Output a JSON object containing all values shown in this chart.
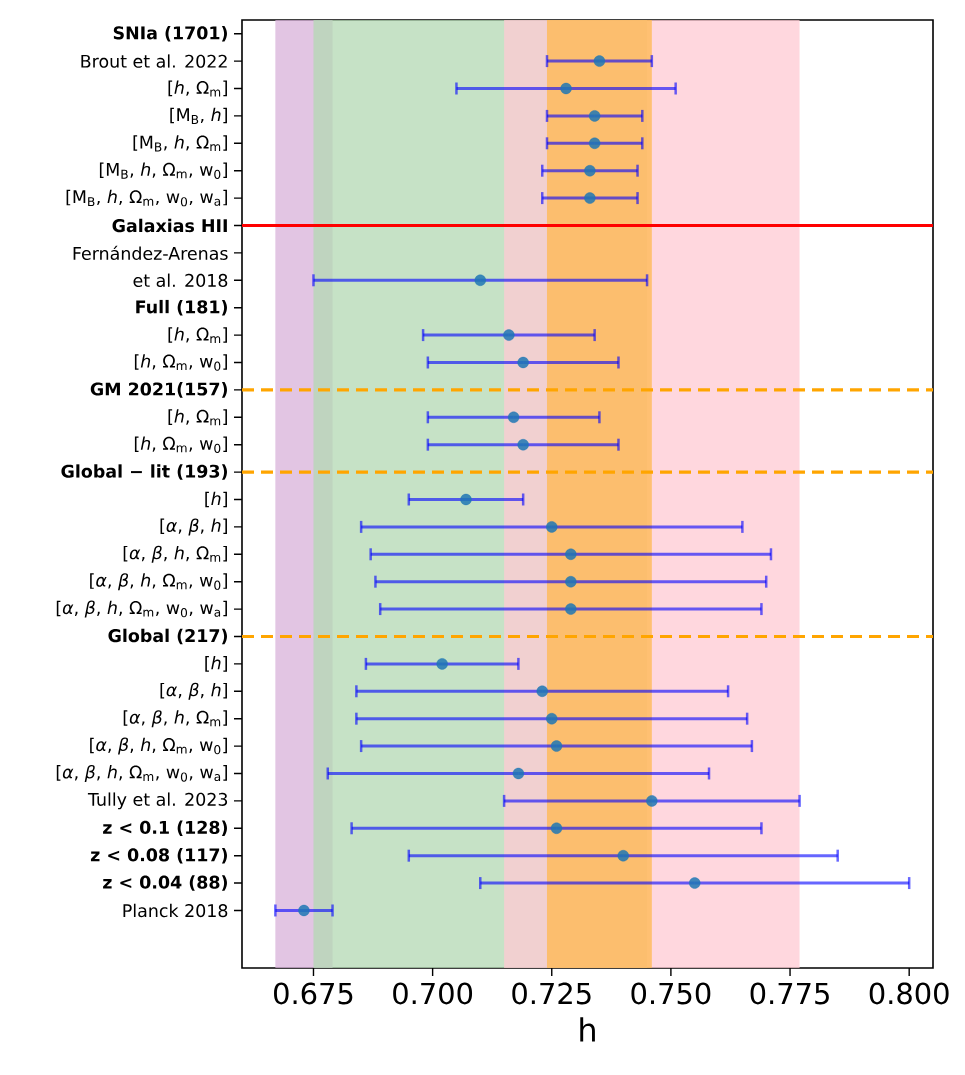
{
  "chart_data": {
    "type": "scatter",
    "orientation": "horizontal",
    "xlabel": "h",
    "categories": [
      "**SNIa (1701)**",
      "Brout et al. 2022",
      "[*h*, Ω$_{m}$]",
      "[M$_{B}$, *h*]",
      "[M$_{B}$, *h*, Ω$_{m}$]",
      "[M$_{B}$, *h*, Ω$_{m}$, w$_{0}$]",
      "[M$_{B}$, *h*, Ω$_{m}$, w$_{0}$, w$_{a}$]",
      "**Galaxias HII**",
      "Fernández-Arenas",
      "et al. 2018",
      "**Full (181)**",
      "[*h*, Ω$_{m}$]",
      "[*h*, Ω$_{m}$, w$_{0}$]",
      "**GM 2021(157)**",
      "[*h*, Ω$_{m}$]",
      "[*h*, Ω$_{m}$, w$_{0}$]",
      "**Global − lit (193)**",
      "[*h*]",
      "[*α*, *β*, *h*]",
      "[*α*, *β*, *h*, Ω$_{m}$]",
      "[*α*, *β*, *h*, Ω$_{m}$, w$_{0}$]",
      "[*α*, *β*, *h*, Ω$_{m}$, w$_{0}$, w$_{a}$]",
      "**Global (217)**",
      "[*h*]",
      "[*α*, *β*, *h*]",
      "[*α*, *β*, *h*, Ω$_{m}$]",
      "[*α*, *β*, *h*, Ω$_{m}$, w$_{0}$]",
      "[*α*, *β*, *h*, Ω$_{m}$, w$_{0}$, w$_{a}$]",
      "Tully et al. 2023",
      "**z < 0.1 (128)**",
      "**z < 0.08 (117)**",
      "**z < 0.04 (88)**",
      "Planck 2018"
    ],
    "values": [
      null,
      0.735,
      0.728,
      0.734,
      0.734,
      0.733,
      0.733,
      null,
      null,
      0.71,
      null,
      0.716,
      0.719,
      null,
      0.717,
      0.719,
      null,
      0.707,
      0.725,
      0.729,
      0.729,
      0.729,
      null,
      0.702,
      0.723,
      0.725,
      0.726,
      0.718,
      0.746,
      0.726,
      0.74,
      0.755,
      0.673
    ],
    "errors": [
      null,
      0.011,
      0.023,
      0.01,
      0.01,
      0.01,
      0.01,
      null,
      null,
      0.035,
      null,
      0.018,
      0.02,
      null,
      0.018,
      0.02,
      null,
      0.012,
      0.04,
      0.042,
      0.041,
      0.04,
      null,
      0.016,
      0.039,
      0.041,
      0.041,
      0.04,
      0.031,
      0.043,
      0.045,
      0.045,
      0.006
    ],
    "color": "#1f77b4",
    "marker": "circle",
    "xlim": [
      0.66,
      0.805
    ],
    "xticks": [
      0.675,
      {
        "value": 0.7,
        "label": "0.700"
      },
      0.725,
      {
        "value": 0.75,
        "label": "0.750"
      },
      0.775,
      {
        "value": 0.8,
        "label": "0.800"
      }
    ],
    "bands": [
      {
        "axis": "x",
        "from": 0.667,
        "to": 0.679,
        "color": "#d8b2da"
      },
      {
        "axis": "x",
        "from": 0.675,
        "to": 0.745,
        "color": "#b3d8b3"
      },
      {
        "axis": "x",
        "from": 0.715,
        "to": 0.777,
        "color": "#ffcad3"
      },
      {
        "axis": "x",
        "from": 0.724,
        "to": 0.746,
        "color": "#ffb84d"
      }
    ],
    "ref_lines": [
      {
        "axis": "y",
        "value": "**Galaxias HII**",
        "color": "#ff0000",
        "line_style": "solid"
      },
      {
        "axis": "y",
        "value": "**GM 2021(157)**",
        "color": "#ffa500",
        "line_style": "dashed"
      },
      {
        "axis": "y",
        "value": "**Global − lit (193)**",
        "color": "#ffa500",
        "line_style": "dashed"
      },
      {
        "axis": "y",
        "value": "**Global (217)**",
        "color": "#ffa500",
        "line_style": "dashed"
      }
    ]
  }
}
